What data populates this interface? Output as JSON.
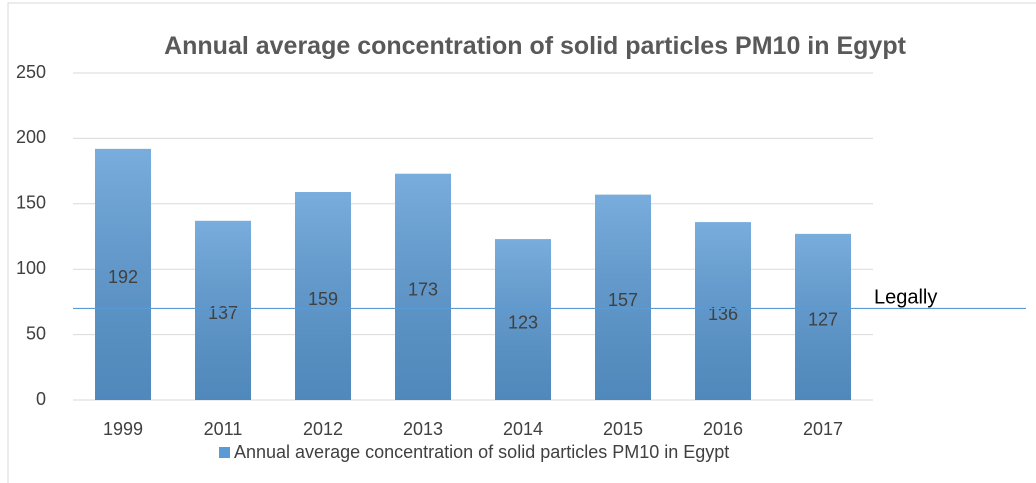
{
  "chart_data": {
    "type": "bar",
    "title": "Annual average concentration of solid particles PM10  in Egypt",
    "categories": [
      "1999",
      "2011",
      "2012",
      "2013",
      "2014",
      "2015",
      "2016",
      "2017"
    ],
    "series": [
      {
        "name": "Annual average concentration of solid particles PM10  in Egypt",
        "color": "#5b9bd5",
        "values": [
          192,
          137,
          159,
          173,
          123,
          157,
          136,
          127
        ]
      }
    ],
    "ylim": [
      0,
      250
    ],
    "yticks": [
      0,
      50,
      100,
      150,
      200,
      250
    ],
    "grid": true,
    "reference_line": {
      "value": 70,
      "label": "Legally",
      "color": "#5b9bd5"
    },
    "legend": "bottom"
  }
}
